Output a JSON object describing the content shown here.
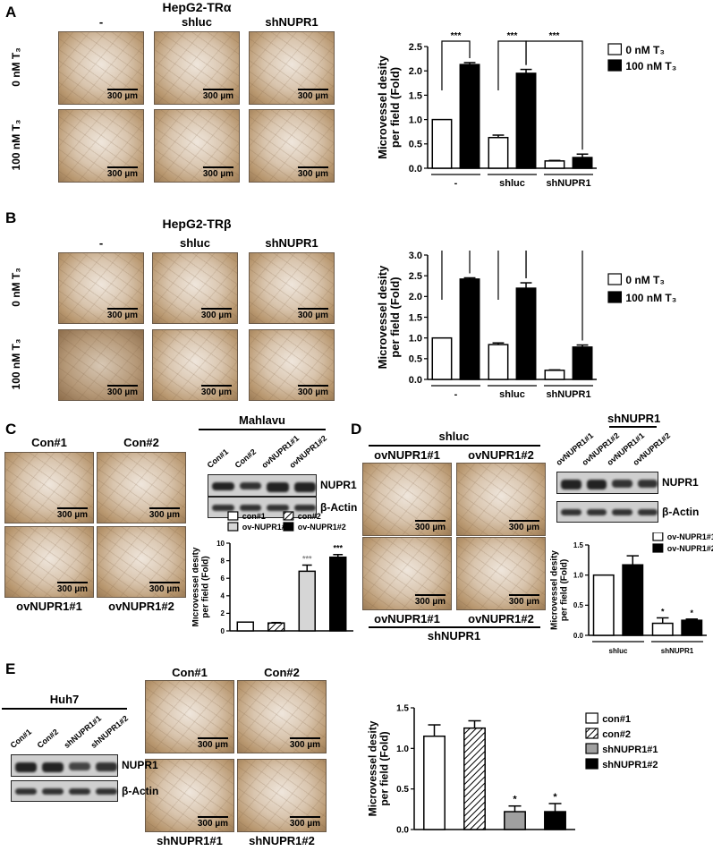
{
  "scale_bar": "300 µm",
  "panels": {
    "A": {
      "label": "A",
      "title": "HepG2-TRα",
      "columns": [
        "-",
        "shluc",
        "shNUPR1"
      ],
      "rows": [
        "0 nM T₃",
        "100 nM T₃"
      ]
    },
    "B": {
      "label": "B",
      "title": "HepG2-TRβ",
      "columns": [
        "-",
        "shluc",
        "shNUPR1"
      ],
      "rows": [
        "0 nM T₃",
        "100 nM T₃"
      ]
    },
    "C": {
      "label": "C",
      "top_captions": [
        "Con#1",
        "Con#2"
      ],
      "bottom_captions": [
        "ovNUPR1#1",
        "ovNUPR1#2"
      ],
      "blot": {
        "title": "Mahlavu",
        "lanes": [
          "Con#1",
          "Con#2",
          "ovNUPR1#1",
          "ovNUPR1#2"
        ],
        "rows": [
          "NUPR1",
          "β-Actin"
        ]
      }
    },
    "D": {
      "label": "D",
      "group_top": "shluc",
      "group_bottom": "shNUPR1",
      "top_captions": [
        "ovNUPR1#1",
        "ovNUPR1#2"
      ],
      "bottom_captions": [
        "ovNUPR1#1",
        "ovNUPR1#2"
      ],
      "blot": {
        "title": "shNUPR1",
        "lanes": [
          "ovNUPR1#1",
          "ovNUPR1#2",
          "ovNUPR1#1",
          "ovNUPR1#2"
        ],
        "rows": [
          "NUPR1",
          "β-Actin"
        ]
      }
    },
    "E": {
      "label": "E",
      "top_captions": [
        "Con#1",
        "Con#2"
      ],
      "bottom_captions": [
        "shNUPR1#1",
        "shNUPR1#2"
      ],
      "blot": {
        "title": "Huh7",
        "lanes": [
          "Con#1",
          "Con#2",
          "shNUPR1#1",
          "shNUPR1#2"
        ],
        "rows": [
          "NUPR1",
          "β-Actin"
        ]
      }
    }
  },
  "chart_data": [
    {
      "id": "A",
      "type": "bar",
      "ylabel": [
        "Microvessel desity",
        "per field (Fold)"
      ],
      "ylim": [
        0,
        2.5
      ],
      "yticks": [
        0.0,
        0.5,
        1.0,
        1.5,
        2.0,
        2.5
      ],
      "tick_format": 1,
      "groups": [
        "-",
        "shluc",
        "shNUPR1"
      ],
      "series": [
        {
          "name": "0 nM T₃",
          "fill": "white",
          "values": [
            1.0,
            0.63,
            0.15
          ],
          "errors": [
            0,
            0.05,
            0.01
          ]
        },
        {
          "name": "100 nM T₃",
          "fill": "black",
          "values": [
            2.13,
            1.95,
            0.22
          ],
          "errors": [
            0.04,
            0.08,
            0.07
          ]
        }
      ],
      "brackets": [
        {
          "from": [
            0,
            0
          ],
          "to": [
            0,
            1
          ],
          "label": "***"
        },
        {
          "from": [
            1,
            0
          ],
          "to": [
            1,
            1
          ],
          "label": "***"
        },
        {
          "from": [
            1,
            1
          ],
          "to": [
            2,
            1
          ],
          "label": "***"
        }
      ]
    },
    {
      "id": "B",
      "type": "bar",
      "ylabel": [
        "Microvessel desity",
        "per field (Fold)"
      ],
      "ylim": [
        0,
        3.0
      ],
      "yticks": [
        0.0,
        0.5,
        1.0,
        1.5,
        2.0,
        2.5,
        3.0
      ],
      "tick_format": 1,
      "groups": [
        "-",
        "shluc",
        "shNUPR1"
      ],
      "series": [
        {
          "name": "0 nM T₃",
          "fill": "white",
          "values": [
            1.0,
            0.84,
            0.22
          ],
          "errors": [
            0,
            0.04,
            0.01
          ]
        },
        {
          "name": "100 nM T₃",
          "fill": "black",
          "values": [
            2.42,
            2.2,
            0.78
          ],
          "errors": [
            0.03,
            0.13,
            0.05
          ]
        }
      ],
      "brackets": [
        {
          "from": [
            0,
            0
          ],
          "to": [
            0,
            1
          ],
          "label": "***"
        },
        {
          "from": [
            1,
            0
          ],
          "to": [
            1,
            1
          ],
          "label": "***"
        },
        {
          "from": [
            1,
            1
          ],
          "to": [
            2,
            1
          ],
          "label": "***"
        }
      ]
    },
    {
      "id": "C",
      "type": "bar",
      "ylabel": [
        "Microvessel desity",
        "per field (Fold)"
      ],
      "ylim": [
        0,
        10
      ],
      "yticks": [
        0,
        2,
        4,
        6,
        8,
        10
      ],
      "tick_format": 0,
      "groups": [
        "",
        "",
        "",
        ""
      ],
      "series": [
        {
          "name": "con#1",
          "fill": "white",
          "values": [
            1.0
          ],
          "errors": [
            0
          ]
        },
        {
          "name": "con#2",
          "fill": "hatch",
          "values": [
            null,
            0.9
          ],
          "errors": [
            0,
            0.05
          ]
        },
        {
          "name": "ov-NUPR1#1",
          "fill": "lightgray",
          "values": [
            null,
            null,
            6.8
          ],
          "errors": [
            0,
            0,
            0.7
          ],
          "stars": [
            null,
            null,
            "***"
          ]
        },
        {
          "name": "ov-NUPR1#2",
          "fill": "black",
          "values": [
            null,
            null,
            null,
            8.4
          ],
          "errors": [
            0,
            0,
            0,
            0.3
          ],
          "stars": [
            null,
            null,
            null,
            "***"
          ]
        }
      ]
    },
    {
      "id": "D",
      "type": "bar",
      "ylabel": [
        "Microvessel desity",
        "per field (Fold)"
      ],
      "ylim": [
        0,
        1.5
      ],
      "yticks": [
        0.0,
        0.5,
        1.0,
        1.5
      ],
      "tick_format": 1,
      "groups": [
        "shluc",
        "shNUPR1"
      ],
      "series": [
        {
          "name": "ov-NUPR1#1",
          "fill": "white",
          "values": [
            1.0,
            0.2
          ],
          "errors": [
            0,
            0.09
          ],
          "stars": [
            null,
            "*"
          ]
        },
        {
          "name": "ov-NUPR1#2",
          "fill": "black",
          "values": [
            1.17,
            0.25
          ],
          "errors": [
            0.15,
            0.02
          ],
          "stars": [
            null,
            "*"
          ]
        }
      ]
    },
    {
      "id": "E",
      "type": "bar",
      "ylabel": [
        "Microvessel desity",
        "per field (Fold)"
      ],
      "ylim": [
        0,
        1.5
      ],
      "yticks": [
        0.0,
        0.5,
        1.0,
        1.5
      ],
      "tick_format": 1,
      "groups": [
        "",
        "",
        "",
        ""
      ],
      "series": [
        {
          "name": "con#1",
          "fill": "white",
          "values": [
            1.15
          ],
          "errors": [
            0.14
          ]
        },
        {
          "name": "con#2",
          "fill": "hatch",
          "values": [
            null,
            1.25
          ],
          "errors": [
            0,
            0.09
          ]
        },
        {
          "name": "shNUPR1#1",
          "fill": "gray",
          "values": [
            null,
            null,
            0.22
          ],
          "errors": [
            0,
            0,
            0.07
          ],
          "stars": [
            null,
            null,
            "*"
          ]
        },
        {
          "name": "shNUPR1#2",
          "fill": "black",
          "values": [
            null,
            null,
            null,
            0.22
          ],
          "errors": [
            0,
            0,
            0,
            0.1
          ],
          "stars": [
            null,
            null,
            null,
            "*"
          ]
        }
      ]
    }
  ],
  "colors": {
    "white": "#ffffff",
    "black": "#000000",
    "gray": "#a0a0a0",
    "lightgray": "#d6d6d6",
    "hatch": "#000000",
    "micrograph": "#c9ab86"
  }
}
